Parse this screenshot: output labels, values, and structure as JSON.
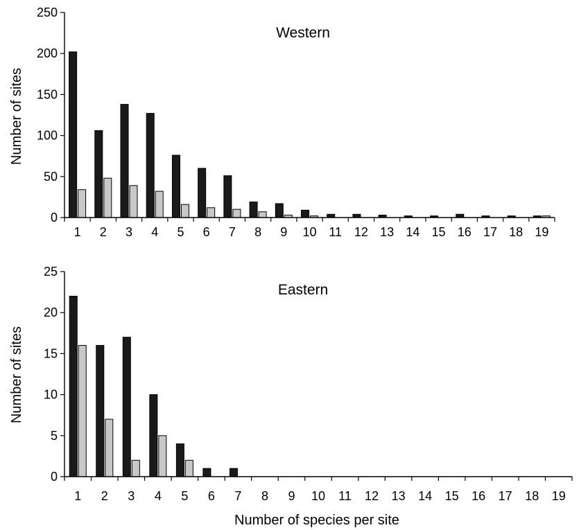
{
  "chart_data": [
    {
      "type": "bar",
      "title": "Western",
      "xlabel": "",
      "ylabel": "Number of sites",
      "ylim": [
        0,
        250
      ],
      "yticks": [
        "0",
        "50",
        "100",
        "150",
        "200",
        "250"
      ],
      "categories": [
        "1",
        "2",
        "3",
        "4",
        "5",
        "6",
        "7",
        "8",
        "9",
        "10",
        "11",
        "12",
        "13",
        "14",
        "15",
        "16",
        "17",
        "18",
        "19"
      ],
      "series": [
        {
          "color": "#1a1a1a",
          "values": [
            202,
            106,
            138,
            127,
            76,
            60,
            51,
            19,
            17,
            9,
            4,
            4,
            3,
            2,
            2,
            4,
            2,
            2,
            2
          ]
        },
        {
          "color": "#c8c8c8",
          "values": [
            34,
            48,
            39,
            32,
            16,
            12,
            10,
            7,
            3,
            2,
            0,
            0,
            0,
            0,
            0,
            0,
            0,
            0,
            2
          ]
        }
      ],
      "grid": false
    },
    {
      "type": "bar",
      "title": "Eastern",
      "xlabel": "Number of species per site",
      "ylabel": "Number of sites",
      "ylim": [
        0,
        25
      ],
      "yticks": [
        "0",
        "5",
        "10",
        "15",
        "20",
        "25"
      ],
      "categories": [
        "1",
        "2",
        "3",
        "4",
        "5",
        "6",
        "7",
        "8",
        "9",
        "10",
        "11",
        "12",
        "13",
        "14",
        "15",
        "16",
        "17",
        "18",
        "19"
      ],
      "series": [
        {
          "color": "#1a1a1a",
          "values": [
            22,
            16,
            17,
            10,
            4,
            1,
            1,
            0,
            0,
            0,
            0,
            0,
            0,
            0,
            0,
            0,
            0,
            0,
            0
          ]
        },
        {
          "color": "#c8c8c8",
          "values": [
            16,
            7,
            2,
            5,
            2,
            0,
            0,
            0,
            0,
            0,
            0,
            0,
            0,
            0,
            0,
            0,
            0,
            0,
            0
          ]
        }
      ],
      "grid": false
    }
  ]
}
